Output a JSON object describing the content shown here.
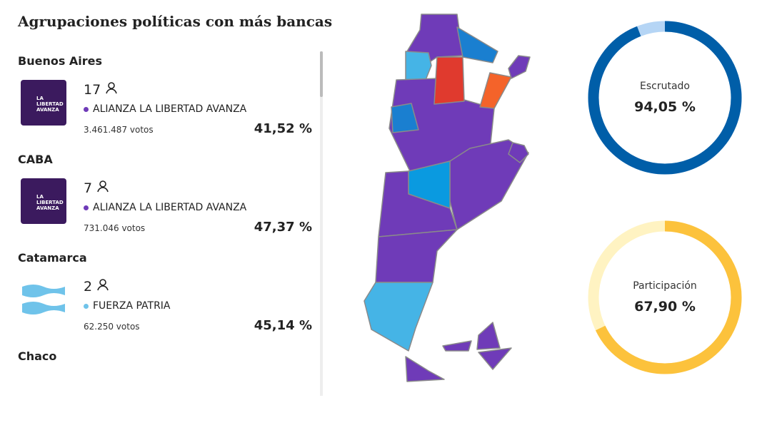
{
  "header": {
    "title": "Agrupaciones políticas con más bancas"
  },
  "provinces": [
    {
      "name": "Buenos Aires",
      "seats": "17",
      "party": "ALIANZA LA LIBERTAD AVANZA",
      "logo": "LA LIBERTAD AVANZA",
      "votes": "3.461.487 votos",
      "percent": "41,52 %"
    },
    {
      "name": "CABA",
      "seats": "7",
      "party": "ALIANZA LA LIBERTAD AVANZA",
      "logo": "LA LIBERTAD AVANZA",
      "votes": "731.046 votos",
      "percent": "47,37 %"
    },
    {
      "name": "Catamarca",
      "seats": "2",
      "party": "FUERZA PATRIA",
      "votes": "62.250 votos",
      "percent": "45,14 %"
    },
    {
      "name": "Chaco"
    }
  ],
  "gauges": [
    {
      "label": "Escrutado",
      "value": 94.05,
      "value_label": "94,05 %",
      "color": "#005ea8",
      "track": "#b5d5f5"
    },
    {
      "label": "Participación",
      "value": 67.9,
      "value_label": "67,90 %",
      "color": "#fcc23c",
      "track": "#fff3c2"
    }
  ]
}
